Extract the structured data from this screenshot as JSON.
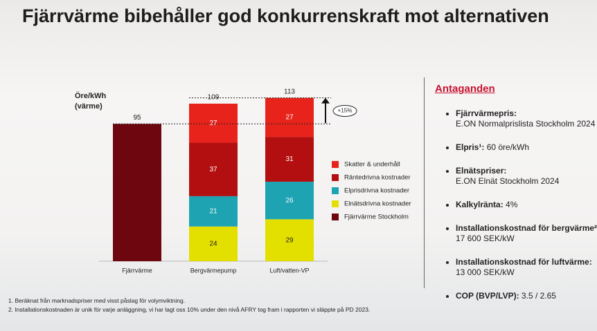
{
  "title": "Fjärrvärme bibehåller god konkurrenskraft mot alternativen",
  "chart_data": {
    "type": "stacked_bar",
    "ylabel": [
      "Öre/kWh",
      "(värme)"
    ],
    "categories": [
      "Fjärrvärme",
      "Bergvärmepump",
      "Luft/vatten-VP"
    ],
    "series": [
      {
        "name": "Skatter & underhåll",
        "color": "#e8231b",
        "values": [
          null,
          27,
          27
        ]
      },
      {
        "name": "Räntedrivna kostnader",
        "color": "#b30f10",
        "values": [
          null,
          37,
          31
        ]
      },
      {
        "name": "Elprisdrivna kostnader",
        "color": "#1ea3b2",
        "values": [
          null,
          21,
          26
        ]
      },
      {
        "name": "Elnätsdrivna kostnader",
        "color": "#e3e000",
        "values": [
          null,
          24,
          29
        ]
      },
      {
        "name": "Fjärrvärme Stockholm",
        "color": "#6e0610",
        "values": [
          95,
          null,
          null
        ]
      }
    ],
    "totals": [
      95,
      109,
      113
    ],
    "annotation": "+15%",
    "ylim": [
      0,
      120
    ]
  },
  "assumptions": {
    "heading": "Antaganden",
    "items": [
      {
        "label": "Fjärrvärmepris:",
        "value": "E.ON Normalprislista Stockholm 2024"
      },
      {
        "label": "Elpris¹:",
        "value": "60 öre/kWh"
      },
      {
        "label": "Elnätspriser:",
        "value": "E.ON Elnät Stockholm 2024"
      },
      {
        "label": "Kalkylränta:",
        "value": "4%"
      },
      {
        "label": "Installationskostnad för bergvärme²",
        "value": "17 600 SEK/kW"
      },
      {
        "label": "Installationskostnad för luftvärme:",
        "value": "13 000 SEK/kW"
      },
      {
        "label": "COP (BVP/LVP):",
        "value": "3.5 / 2.65"
      }
    ]
  },
  "footnotes": [
    "1. Beräknat från marknadspriser med visst påslag för volymviktning.",
    "2. Installationskostnaden är unik för varje anläggning, vi har lagt oss 10% under den nivå AFRY tog fram i rapporten vi släppte på PD 2023."
  ]
}
